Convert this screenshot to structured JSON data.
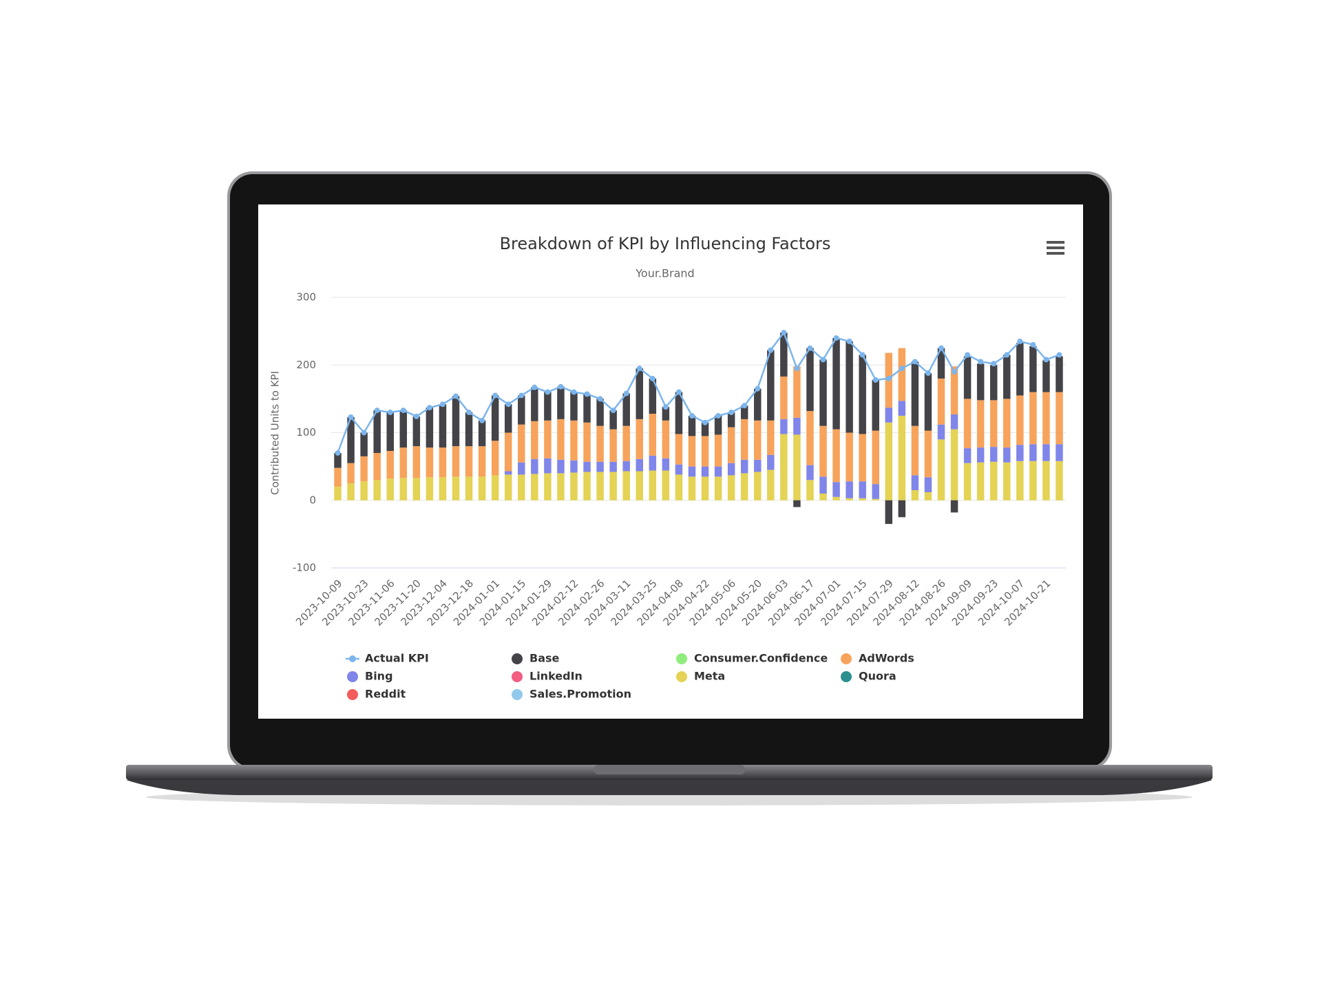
{
  "chart_data": {
    "type": "bar",
    "stacked": true,
    "title": "Breakdown of KPI by Influencing Factors",
    "subtitle": "Your.Brand",
    "y_label": "Contributed Units to KPI",
    "categories": [
      "2023-10-09",
      null,
      "2023-10-23",
      null,
      "2023-11-06",
      null,
      "2023-11-20",
      null,
      "2023-12-04",
      null,
      "2023-12-18",
      null,
      "2024-01-01",
      null,
      "2024-01-15",
      null,
      "2024-01-29",
      null,
      "2024-02-12",
      null,
      "2024-02-26",
      null,
      "2024-03-11",
      null,
      "2024-03-25",
      null,
      "2024-04-08",
      null,
      "2024-04-22",
      null,
      "2024-05-06",
      null,
      "2024-05-20",
      null,
      "2024-06-03",
      null,
      "2024-06-17",
      null,
      "2024-07-01",
      null,
      "2024-07-15",
      null,
      "2024-07-29",
      null,
      "2024-08-12",
      null,
      "2024-08-26",
      null,
      "2024-09-09",
      null,
      "2024-09-23",
      null,
      "2024-10-07",
      null,
      "2024-10-21",
      null
    ],
    "ylim": [
      -100,
      300
    ],
    "yticks": [
      -100,
      0,
      100,
      200,
      300
    ],
    "grid": true,
    "series": [
      {
        "name": "Actual KPI",
        "type": "line",
        "color": "#7cb5ec",
        "values": [
          70,
          123,
          100,
          133,
          130,
          133,
          124,
          137,
          142,
          154,
          130,
          118,
          155,
          142,
          155,
          167,
          160,
          168,
          160,
          157,
          150,
          133,
          158,
          195,
          180,
          138,
          160,
          125,
          115,
          125,
          130,
          140,
          165,
          222,
          248,
          195,
          225,
          208,
          240,
          235,
          215,
          178,
          180,
          195,
          205,
          188,
          225,
          190,
          215,
          205,
          202,
          215,
          235,
          230,
          208,
          215
        ]
      },
      {
        "name": "Base",
        "color": "#434348",
        "values": [
          22,
          68,
          35,
          63,
          57,
          55,
          44,
          59,
          64,
          74,
          50,
          38,
          67,
          42,
          43,
          50,
          42,
          48,
          42,
          42,
          40,
          28,
          48,
          75,
          52,
          20,
          62,
          30,
          20,
          28,
          22,
          20,
          47,
          104,
          65,
          -10,
          93,
          98,
          135,
          135,
          117,
          75,
          -35,
          -25,
          95,
          85,
          45,
          -18,
          63,
          54,
          52,
          65,
          78,
          68,
          47,
          53
        ]
      },
      {
        "name": "Consumer.Confidence",
        "color": "#90ed7d",
        "values": [
          0,
          0,
          0,
          0,
          0,
          0,
          0,
          0,
          0,
          0,
          0,
          0,
          0,
          0,
          0,
          0,
          0,
          0,
          0,
          0,
          0,
          0,
          0,
          0,
          0,
          0,
          0,
          0,
          0,
          0,
          0,
          0,
          0,
          0,
          0,
          0,
          0,
          0,
          0,
          0,
          0,
          0,
          0,
          0,
          0,
          0,
          0,
          0,
          0,
          0,
          0,
          0,
          0,
          0,
          0,
          0
        ]
      },
      {
        "name": "AdWords",
        "color": "#f7a35c",
        "values": [
          28,
          30,
          37,
          40,
          41,
          45,
          47,
          44,
          44,
          45,
          45,
          45,
          51,
          57,
          56,
          56,
          56,
          60,
          59,
          58,
          53,
          48,
          52,
          59,
          62,
          56,
          45,
          45,
          45,
          47,
          53,
          60,
          58,
          51,
          63,
          76,
          80,
          75,
          78,
          72,
          70,
          79,
          81,
          78,
          73,
          69,
          68,
          71,
          73,
          70,
          69,
          72,
          73,
          77,
          77,
          77
        ]
      },
      {
        "name": "Bing",
        "color": "#8085e9",
        "values": [
          0,
          0,
          0,
          0,
          0,
          0,
          0,
          0,
          0,
          0,
          0,
          0,
          0,
          5,
          18,
          22,
          22,
          20,
          18,
          15,
          15,
          15,
          15,
          18,
          22,
          18,
          15,
          15,
          15,
          15,
          18,
          20,
          18,
          22,
          22,
          25,
          22,
          25,
          22,
          25,
          25,
          22,
          22,
          22,
          22,
          22,
          22,
          22,
          22,
          22,
          22,
          22,
          24,
          25,
          25,
          25
        ]
      },
      {
        "name": "LinkedIn",
        "color": "#f15c80",
        "values": [
          0,
          0,
          0,
          0,
          0,
          0,
          0,
          0,
          0,
          0,
          0,
          0,
          0,
          0,
          0,
          0,
          0,
          0,
          0,
          0,
          0,
          0,
          0,
          0,
          0,
          0,
          0,
          0,
          0,
          0,
          0,
          0,
          0,
          0,
          0,
          0,
          0,
          0,
          0,
          0,
          0,
          0,
          0,
          0,
          0,
          0,
          0,
          0,
          0,
          0,
          0,
          0,
          0,
          0,
          0,
          0
        ]
      },
      {
        "name": "Meta",
        "color": "#e4d354",
        "values": [
          20,
          25,
          28,
          30,
          32,
          33,
          33,
          34,
          34,
          35,
          35,
          35,
          37,
          38,
          38,
          39,
          40,
          40,
          41,
          42,
          42,
          42,
          43,
          43,
          44,
          44,
          38,
          35,
          35,
          35,
          37,
          40,
          42,
          45,
          98,
          97,
          30,
          10,
          5,
          3,
          3,
          2,
          115,
          125,
          15,
          12,
          90,
          105,
          55,
          56,
          57,
          56,
          58,
          58,
          58,
          58
        ]
      },
      {
        "name": "Quora",
        "color": "#2b908f",
        "values": [
          0,
          0,
          0,
          0,
          0,
          0,
          0,
          0,
          0,
          0,
          0,
          0,
          0,
          0,
          0,
          0,
          0,
          0,
          0,
          0,
          0,
          0,
          0,
          0,
          0,
          0,
          0,
          0,
          0,
          0,
          0,
          0,
          0,
          0,
          0,
          0,
          0,
          0,
          0,
          0,
          0,
          0,
          0,
          0,
          0,
          0,
          0,
          0,
          0,
          0,
          0,
          0,
          0,
          0,
          0,
          0
        ]
      },
      {
        "name": "Reddit",
        "color": "#f45b5b",
        "values": [
          0,
          0,
          0,
          0,
          0,
          0,
          0,
          0,
          0,
          0,
          0,
          0,
          0,
          0,
          0,
          0,
          0,
          0,
          0,
          0,
          0,
          0,
          0,
          0,
          0,
          0,
          0,
          0,
          0,
          0,
          0,
          0,
          0,
          0,
          0,
          0,
          0,
          0,
          0,
          0,
          0,
          0,
          0,
          0,
          0,
          0,
          0,
          0,
          0,
          0,
          0,
          0,
          0,
          0,
          0,
          0
        ]
      },
      {
        "name": "Sales.Promotion",
        "color": "#91c8ec",
        "values": [
          0,
          0,
          0,
          0,
          0,
          0,
          0,
          0,
          0,
          0,
          0,
          0,
          0,
          0,
          0,
          0,
          0,
          0,
          0,
          0,
          0,
          0,
          0,
          0,
          0,
          0,
          0,
          0,
          0,
          0,
          0,
          0,
          0,
          0,
          0,
          0,
          0,
          0,
          0,
          0,
          0,
          0,
          0,
          0,
          0,
          0,
          0,
          0,
          0,
          0,
          0,
          0,
          0,
          0,
          0,
          0
        ]
      }
    ]
  }
}
